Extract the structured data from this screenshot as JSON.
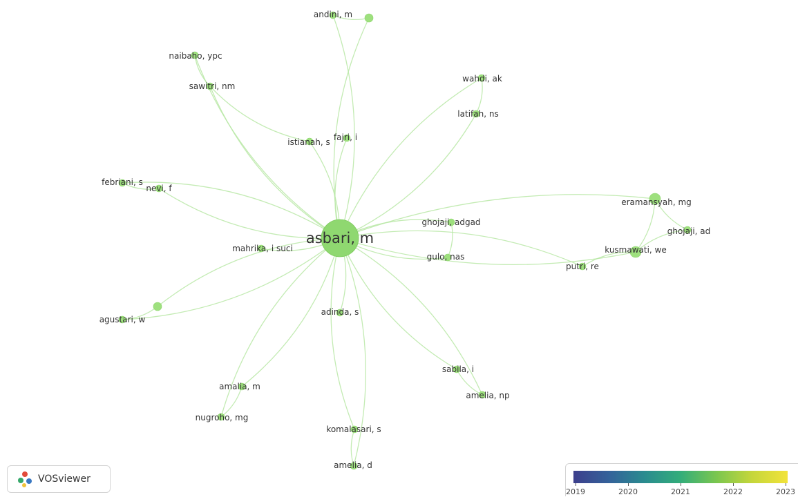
{
  "network": {
    "center": {
      "label": "asbari, m"
    },
    "nodes": [
      {
        "id": "andini",
        "label": "andini, m"
      },
      {
        "id": "unlabeled_top",
        "label": ""
      },
      {
        "id": "naibaho",
        "label": "naibaho, ypc"
      },
      {
        "id": "sawitri",
        "label": "sawitri, nm"
      },
      {
        "id": "wahdi",
        "label": "wahdi, ak"
      },
      {
        "id": "latifah",
        "label": "latifah, ns"
      },
      {
        "id": "istianah",
        "label": "istianah, s"
      },
      {
        "id": "fajri",
        "label": "fajri, i"
      },
      {
        "id": "febriani",
        "label": "febriani, s"
      },
      {
        "id": "nevi",
        "label": "nevi, f"
      },
      {
        "id": "eramansyah",
        "label": "eramansyah, mg"
      },
      {
        "id": "ghojaji_ad",
        "label": "ghojaji, ad"
      },
      {
        "id": "ghojaji_adgad",
        "label": "ghojaji, adgad"
      },
      {
        "id": "gulo",
        "label": "gulo, nas"
      },
      {
        "id": "kusmawati",
        "label": "kusmawati, we"
      },
      {
        "id": "putri",
        "label": "putri, re"
      },
      {
        "id": "mahrika",
        "label": "mahrika, i suci"
      },
      {
        "id": "unlabeled_left",
        "label": ""
      },
      {
        "id": "agustari",
        "label": "agustari, w"
      },
      {
        "id": "adinda",
        "label": "adinda, s"
      },
      {
        "id": "sabila",
        "label": "sabila, i"
      },
      {
        "id": "amelia_np",
        "label": "amelia, np"
      },
      {
        "id": "amalia",
        "label": "amalia, m"
      },
      {
        "id": "nugroho",
        "label": "nugroho, mg"
      },
      {
        "id": "komalasari",
        "label": "komalasari, s"
      },
      {
        "id": "amelia_d",
        "label": "amelia, d"
      }
    ],
    "links": [
      [
        "center",
        "andini"
      ],
      [
        "center",
        "unlabeled_top"
      ],
      [
        "andini",
        "unlabeled_top"
      ],
      [
        "center",
        "naibaho"
      ],
      [
        "naibaho",
        "sawitri"
      ],
      [
        "center",
        "sawitri"
      ],
      [
        "sawitri",
        "istianah"
      ],
      [
        "center",
        "wahdi"
      ],
      [
        "center",
        "latifah"
      ],
      [
        "wahdi",
        "latifah"
      ],
      [
        "center",
        "istianah"
      ],
      [
        "center",
        "fajri"
      ],
      [
        "center",
        "febriani"
      ],
      [
        "center",
        "nevi"
      ],
      [
        "febriani",
        "nevi"
      ],
      [
        "center",
        "eramansyah"
      ],
      [
        "eramansyah",
        "ghojaji_ad"
      ],
      [
        "eramansyah",
        "kusmawati"
      ],
      [
        "ghojaji_ad",
        "kusmawati"
      ],
      [
        "center",
        "ghojaji_adgad"
      ],
      [
        "center",
        "gulo"
      ],
      [
        "ghojaji_adgad",
        "gulo"
      ],
      [
        "center",
        "kusmawati"
      ],
      [
        "center",
        "putri"
      ],
      [
        "kusmawati",
        "putri"
      ],
      [
        "center",
        "mahrika"
      ],
      [
        "center",
        "unlabeled_left"
      ],
      [
        "center",
        "agustari"
      ],
      [
        "agustari",
        "unlabeled_left"
      ],
      [
        "center",
        "adinda"
      ],
      [
        "center",
        "sabila"
      ],
      [
        "center",
        "amelia_np"
      ],
      [
        "sabila",
        "amelia_np"
      ],
      [
        "center",
        "amalia"
      ],
      [
        "center",
        "nugroho"
      ],
      [
        "amalia",
        "nugroho"
      ],
      [
        "center",
        "komalasari"
      ],
      [
        "center",
        "amelia_d"
      ],
      [
        "komalasari",
        "amelia_d"
      ]
    ]
  },
  "logo": {
    "text": "VOSviewer"
  },
  "legend": {
    "ticks": [
      "2019",
      "2020",
      "2021",
      "2022",
      "2023"
    ],
    "colors": [
      "#3d3f8c",
      "#34629a",
      "#2a8c8f",
      "#33ad7a",
      "#7ac64f",
      "#c5d63b",
      "#f2e33a"
    ]
  }
}
